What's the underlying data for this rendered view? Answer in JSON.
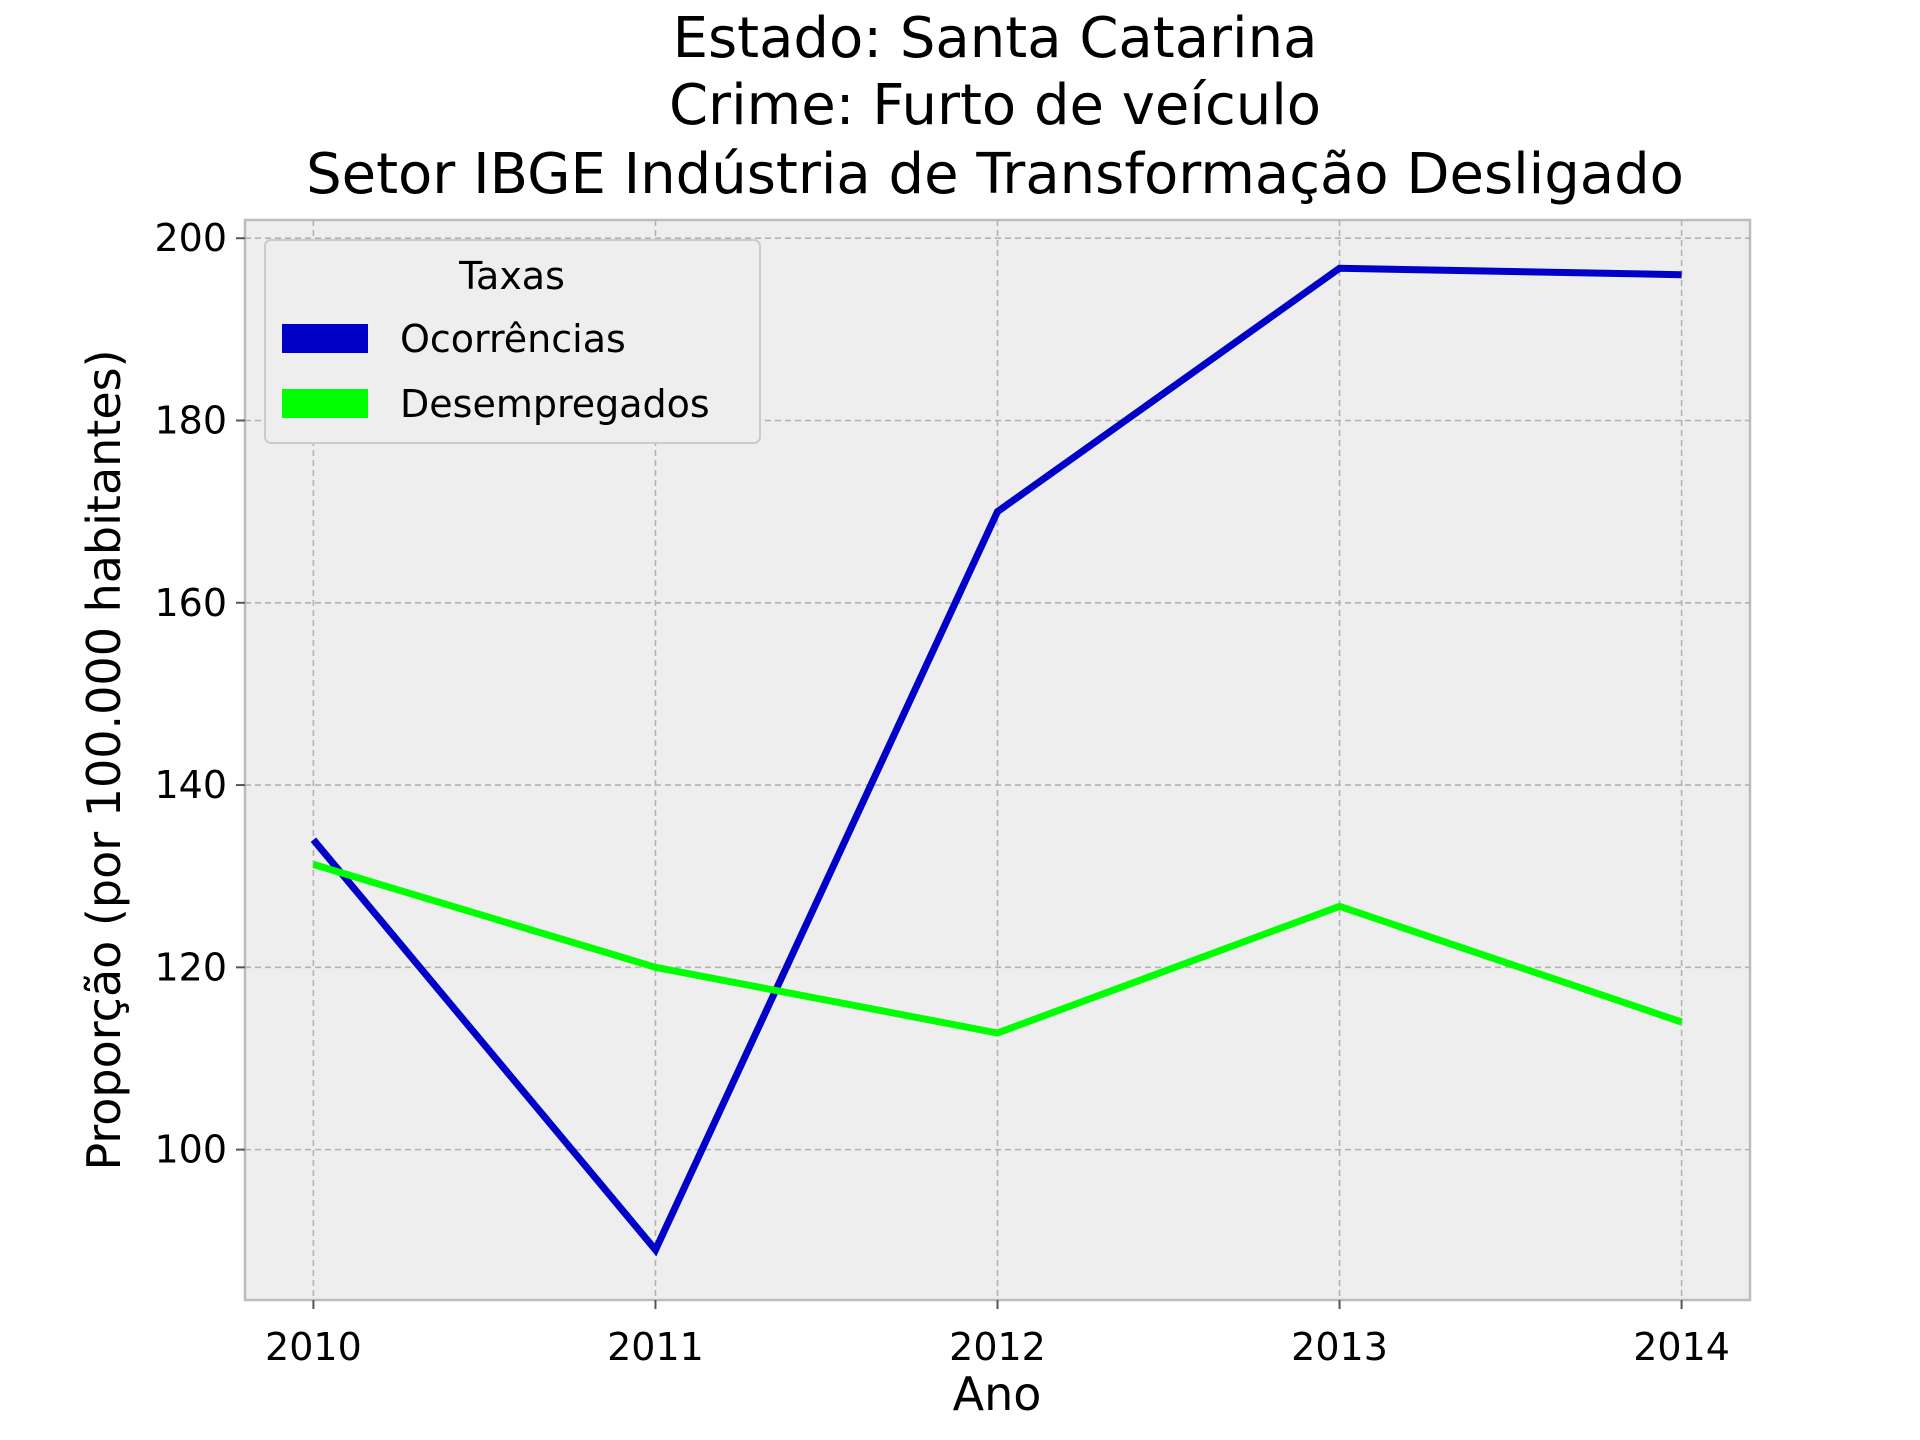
{
  "chart_data": {
    "type": "line",
    "title_lines": [
      "Estado: Santa Catarina",
      "Crime: Furto de veículo",
      "Setor IBGE  Indústria de Transformação   Desligado"
    ],
    "xlabel": "Ano",
    "ylabel": "Proporção (por 100.000 habitantes)",
    "x": [
      2010,
      2011,
      2012,
      2013,
      2014
    ],
    "xticks": [
      "2010",
      "2011",
      "2012",
      "2013",
      "2014"
    ],
    "yticks": [
      100,
      120,
      140,
      160,
      180,
      200
    ],
    "xlim": [
      2009.8,
      2014.2
    ],
    "ylim": [
      83.5,
      202
    ],
    "grid": true,
    "legend": {
      "title": "Taxas",
      "placement": "top-left"
    },
    "series": [
      {
        "name": "Ocorrências",
        "color": "#0000c8",
        "values": [
          134,
          89,
          170,
          196.7,
          196
        ]
      },
      {
        "name": "Desempregados",
        "color": "#00ff00",
        "values": [
          131.3,
          120,
          112.8,
          126.7,
          114
        ]
      }
    ]
  }
}
